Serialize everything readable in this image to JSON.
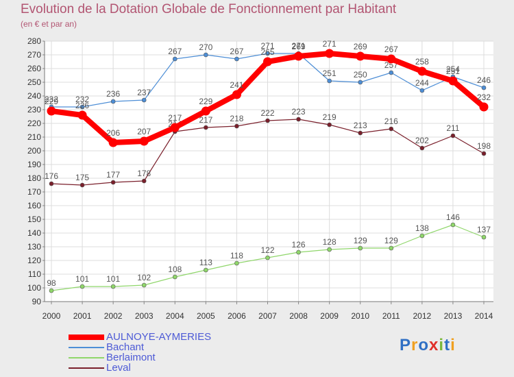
{
  "header": {
    "title": "Evolution de la Dotation Globale de Fonctionnement par Habitant",
    "subtitle": "(en € et par an)"
  },
  "logo": {
    "text": "Proxiti"
  },
  "colors": {
    "title": "#b25572",
    "frame": "#ececec",
    "plot": "#ffffff",
    "grid": "#dcdcdc",
    "axis_text": "#333333",
    "label_text": "#555555",
    "legend_text": "#4d5ad6"
  },
  "chart_data": {
    "type": "line",
    "title": "Evolution de la Dotation Globale de Fonctionnement par Habitant",
    "subtitle": "(en € et par an)",
    "xlabel": "",
    "ylabel": "",
    "x": [
      2000,
      2001,
      2002,
      2003,
      2004,
      2005,
      2006,
      2007,
      2008,
      2009,
      2010,
      2011,
      2012,
      2013,
      2014
    ],
    "ylim": [
      90,
      280
    ],
    "yticks": [
      90,
      100,
      110,
      120,
      130,
      140,
      150,
      160,
      170,
      180,
      190,
      200,
      210,
      220,
      230,
      240,
      250,
      260,
      270,
      280
    ],
    "grid": true,
    "legend": "bottom-left",
    "series": [
      {
        "name": "AULNOYE-AYMERIES",
        "color": "#ff0000",
        "values": [
          229,
          226,
          206,
          207,
          217,
          229,
          241,
          265,
          269,
          271,
          269,
          267,
          258,
          251,
          232
        ]
      },
      {
        "name": "Bachant",
        "color": "#4d8ed6",
        "values": [
          232,
          232,
          236,
          237,
          267,
          270,
          267,
          271,
          271,
          251,
          250,
          257,
          244,
          254,
          246
        ]
      },
      {
        "name": "Berlaimont",
        "color": "#8fd66a",
        "values": [
          98,
          101,
          101,
          102,
          108,
          113,
          118,
          122,
          126,
          128,
          129,
          129,
          138,
          146,
          137
        ]
      },
      {
        "name": "Leval",
        "color": "#7a1f2b",
        "values": [
          176,
          175,
          177,
          178,
          214,
          217,
          218,
          222,
          223,
          219,
          213,
          216,
          202,
          211,
          198
        ]
      }
    ]
  }
}
